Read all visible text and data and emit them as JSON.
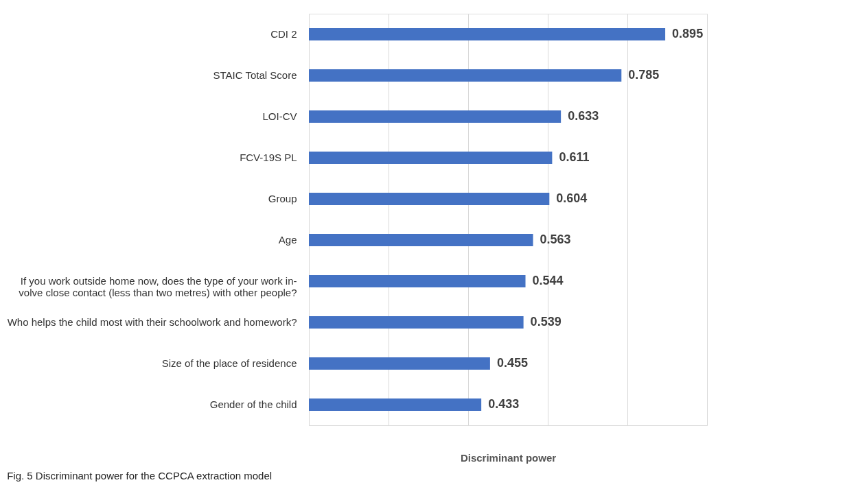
{
  "chart_data": {
    "type": "bar",
    "orientation": "horizontal",
    "xlabel": "Discriminant power",
    "categories": [
      "CDI 2",
      "STAIC Total Score",
      "LOI-CV",
      "FCV-19S PL",
      "Group",
      "Age",
      "If you work outside home now, does the type of your work in-\nvolve close contact (less than two metres) with other people?",
      "Who helps the child most with their schoolwork and homework?",
      "Size of the place of residence",
      "Gender of the child"
    ],
    "values": [
      0.895,
      0.785,
      0.633,
      0.611,
      0.604,
      0.563,
      0.544,
      0.539,
      0.455,
      0.433
    ],
    "color": "#4472c4",
    "xlim": [
      0,
      1.0
    ],
    "xticks": [
      {
        "value": 0,
        "label": null
      },
      {
        "value": 0.2,
        "label": null
      },
      {
        "value": 0.4,
        "label": null
      },
      {
        "value": 0.6,
        "label": null
      },
      {
        "value": 0.8,
        "label": null
      },
      {
        "value": 1.0,
        "label": null
      }
    ],
    "tick_labels": "y",
    "grid": "x",
    "data_labels": true,
    "annotations": [
      "Fig. 5 Discriminant power for the CCPCA extraction model"
    ]
  }
}
